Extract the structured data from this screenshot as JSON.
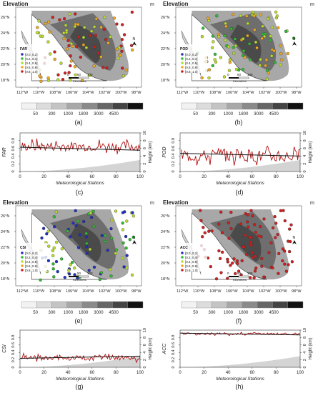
{
  "map_panels": [
    {
      "id": "a",
      "title": "Elevation",
      "unit": "m",
      "letter": "(a)",
      "legend_title": "FAR",
      "legend_bins": [
        "[0.0, 0.2]",
        "[0.2, 0.4]",
        "[0.4, 0.6]",
        "[0.6, 0.8]",
        "[0.8, 1.0]"
      ],
      "legend_colors": [
        "#2233bb",
        "#33bb33",
        "#bbdd33",
        "#eeaa22",
        "#cc2222"
      ],
      "dominant": [
        2,
        3,
        4
      ]
    },
    {
      "id": "b",
      "title": "Elevation",
      "unit": "m",
      "letter": "(b)",
      "legend_title": "POD",
      "legend_bins": [
        "[0.0, 0.2]",
        "[0.2, 0.4]",
        "[0.4, 0.6]",
        "[0.6, 0.8]",
        "[0.8, 1.0]"
      ],
      "legend_colors": [
        "#2233bb",
        "#33bb33",
        "#bbdd33",
        "#eeaa22",
        "#cc2222"
      ],
      "dominant": [
        1,
        2,
        3
      ]
    },
    {
      "id": "e",
      "title": "Elevation",
      "unit": "m",
      "letter": "(e)",
      "legend_title": "CSI",
      "legend_bins": [
        "[0.0, 0.2]",
        "[0.2, 0.4]",
        "[0.4, 0.6]",
        "[0.6, 0.8]",
        "[0.8, 1.0]"
      ],
      "legend_colors": [
        "#2233bb",
        "#33bb33",
        "#bbdd33",
        "#eeaa22",
        "#cc2222"
      ],
      "dominant": [
        0,
        1,
        2
      ]
    },
    {
      "id": "f",
      "title": "Elevation",
      "unit": "m",
      "letter": "(f)",
      "legend_title": "ACC",
      "legend_bins": [
        "[0.0, 0.2]",
        "[0.2, 0.4]",
        "[0.4, 0.6]",
        "[0.6, 0.8]",
        "[0.8, 1.0]"
      ],
      "legend_colors": [
        "#2233bb",
        "#33bb33",
        "#bbdd33",
        "#eeaa22",
        "#cc2222"
      ],
      "dominant": [
        4
      ]
    }
  ],
  "map_axes": {
    "lat_ticks": [
      "26°N",
      "24°N",
      "22°N",
      "20°N",
      "18°N"
    ],
    "lon_ticks": [
      "112°W",
      "110°W",
      "108°W",
      "106°W",
      "104°W",
      "102°W",
      "100°W",
      "98°W"
    ],
    "scale_labels": [
      "0",
      "50",
      "100"
    ],
    "scale_unit": "Kilometers",
    "north": "N"
  },
  "elevation_colorbar": {
    "labels": [
      "50",
      "300",
      "1000",
      "1800",
      "3000",
      "4500"
    ],
    "colors": [
      "#f2f2f2",
      "#dcdcdc",
      "#c4c4c4",
      "#a8a8a8",
      "#8a8a8a",
      "#666666",
      "#444444",
      "#111111"
    ]
  },
  "chart_data": [
    {
      "type": "line",
      "id": "c",
      "letter": "(c)",
      "xlabel": "Meteorological Stations",
      "ylabel": "FAR",
      "y2label": "Height (km)",
      "xlim": [
        0,
        100
      ],
      "ylim": [
        0,
        1
      ],
      "y2lim": [
        0,
        10
      ],
      "x_ticks": [
        0,
        20,
        40,
        60,
        80,
        100
      ],
      "y_ticks": [
        0,
        0.2,
        0.4,
        0.6,
        0.8
      ],
      "y2_ticks": [
        0,
        2,
        4,
        6,
        8,
        10
      ],
      "mean": 0.65,
      "amp": 0.12,
      "trend": [
        0.63,
        0.55
      ],
      "height_max_km": 3.0
    },
    {
      "type": "line",
      "id": "d",
      "letter": "(d)",
      "xlabel": "Meteorological Stations",
      "ylabel": "POD",
      "y2label": "Height (km)",
      "xlim": [
        0,
        100
      ],
      "ylim": [
        0,
        1
      ],
      "y2lim": [
        0,
        10
      ],
      "x_ticks": [
        0,
        20,
        40,
        60,
        80,
        100
      ],
      "y_ticks": [
        0,
        0.2,
        0.4,
        0.6,
        0.8
      ],
      "y2_ticks": [
        0,
        2,
        4,
        6,
        8,
        10
      ],
      "mean": 0.42,
      "amp": 0.16,
      "trend": [
        0.47,
        0.4
      ],
      "height_max_km": 3.0
    },
    {
      "type": "line",
      "id": "g",
      "letter": "(g)",
      "xlabel": "Meteorological Stations",
      "ylabel": "CSI",
      "y2label": "Height (km)",
      "xlim": [
        0,
        100
      ],
      "ylim": [
        0,
        1
      ],
      "y2lim": [
        0,
        10
      ],
      "x_ticks": [
        0,
        20,
        40,
        60,
        80,
        100
      ],
      "y_ticks": [
        0,
        0.2,
        0.4,
        0.6,
        0.8
      ],
      "y2_ticks": [
        0,
        2,
        4,
        6,
        8,
        10
      ],
      "mean": 0.25,
      "amp": 0.07,
      "trend": [
        0.24,
        0.3
      ],
      "height_max_km": 3.0
    },
    {
      "type": "line",
      "id": "h",
      "letter": "(h)",
      "xlabel": "Meteorological Stations",
      "ylabel": "ACC",
      "y2label": "Height (km)",
      "xlim": [
        0,
        100
      ],
      "ylim": [
        0,
        1
      ],
      "y2lim": [
        0,
        10
      ],
      "x_ticks": [
        0,
        20,
        40,
        60,
        80,
        100
      ],
      "y_ticks": [
        0,
        0.2,
        0.4,
        0.6,
        0.8
      ],
      "y2_ticks": [
        0,
        2,
        4,
        6,
        8,
        10
      ],
      "mean": 0.9,
      "amp": 0.03,
      "trend": [
        0.92,
        0.87
      ],
      "height_max_km": 3.0
    }
  ]
}
